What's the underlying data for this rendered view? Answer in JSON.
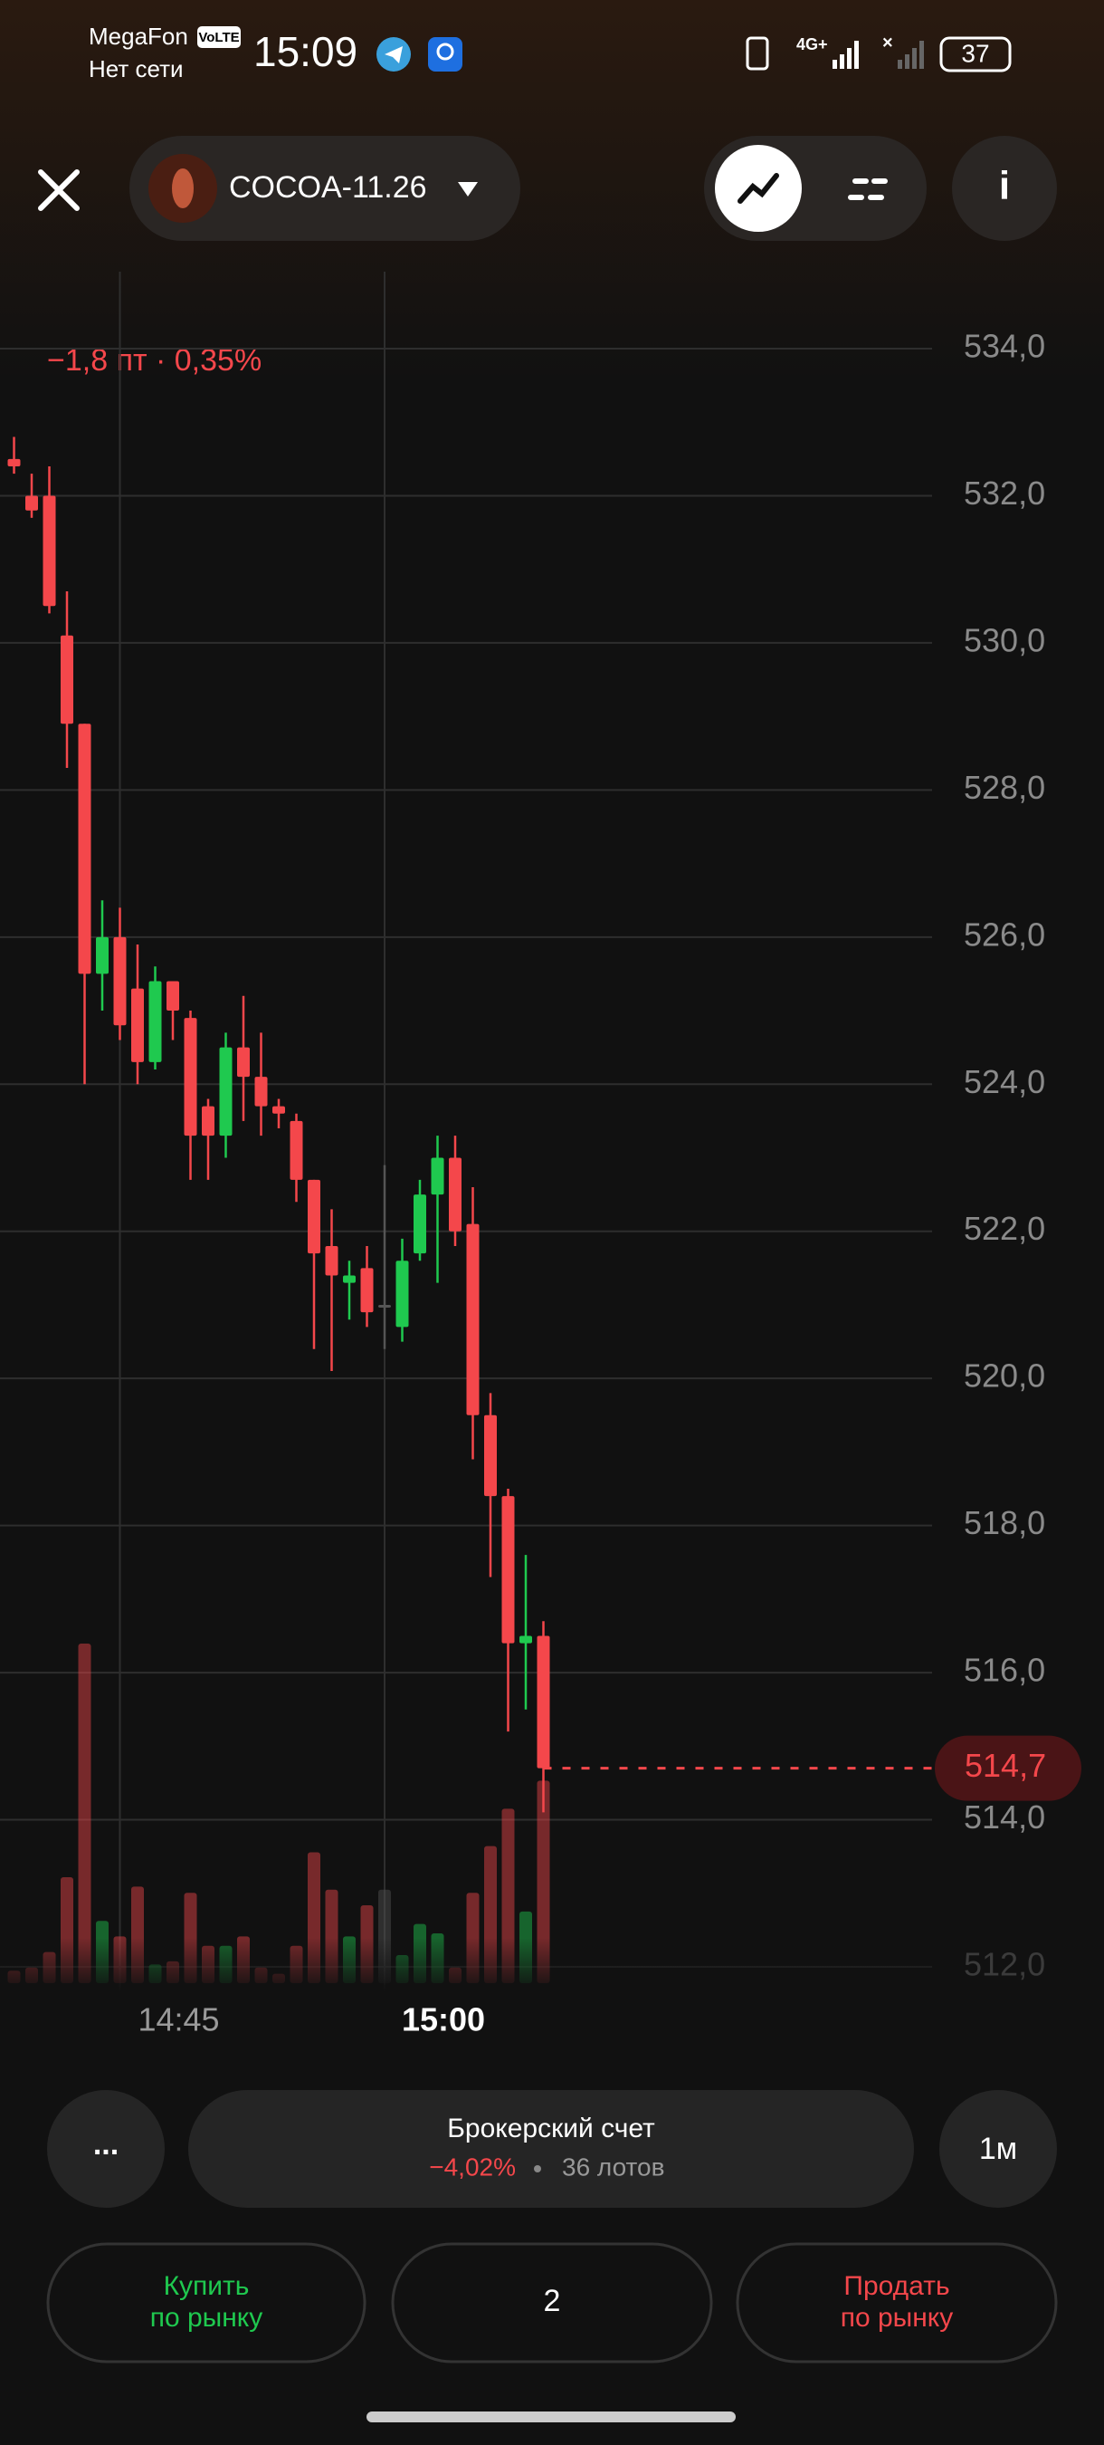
{
  "status_bar": {
    "carrier": "MegaFon",
    "volte": "VoLTE",
    "network": "Нет сети",
    "time": "15:09",
    "network_type": "4G+",
    "battery": "37"
  },
  "header": {
    "instrument": "COCOA-11.26"
  },
  "change": "−1,8 пт · 0,35%",
  "chart_data": {
    "type": "candlestick",
    "open": [
      532.5,
      532.0,
      532.0,
      530.1,
      528.9,
      525.5,
      526.0,
      525.3,
      524.3,
      525.4,
      524.9,
      523.7,
      523.3,
      524.5,
      524.1,
      523.7,
      523.5,
      522.7,
      521.8,
      521.3,
      521.5,
      521.0,
      520.7,
      521.7,
      522.5,
      523.0,
      522.1,
      519.5,
      518.4,
      516.4,
      516.5
    ],
    "high": [
      532.8,
      532.3,
      532.4,
      530.7,
      528.9,
      526.5,
      526.4,
      525.9,
      525.6,
      525.4,
      525.0,
      523.8,
      524.7,
      525.2,
      524.7,
      523.8,
      523.6,
      522.7,
      522.3,
      521.6,
      521.8,
      522.9,
      521.9,
      522.7,
      523.3,
      523.3,
      522.6,
      519.8,
      518.5,
      517.6,
      516.7
    ],
    "low": [
      532.3,
      531.7,
      530.4,
      528.3,
      524.0,
      525.0,
      524.6,
      524.0,
      524.2,
      524.6,
      522.7,
      522.7,
      523.0,
      523.5,
      523.3,
      523.4,
      522.4,
      520.4,
      520.1,
      520.8,
      520.7,
      520.4,
      520.5,
      521.6,
      521.3,
      521.8,
      518.9,
      517.3,
      515.2,
      515.5,
      514.1
    ],
    "close": [
      532.4,
      531.8,
      530.5,
      528.9,
      525.5,
      526.0,
      524.8,
      524.3,
      525.4,
      525.0,
      523.3,
      523.3,
      524.5,
      524.1,
      523.7,
      523.6,
      522.7,
      521.7,
      521.4,
      521.4,
      520.9,
      521.0,
      521.6,
      522.5,
      523.0,
      522.0,
      519.5,
      518.4,
      516.4,
      516.5,
      514.7
    ],
    "volume": [
      8,
      10,
      20,
      68,
      218,
      40,
      30,
      62,
      12,
      14,
      58,
      24,
      24,
      30,
      10,
      6,
      24,
      84,
      60,
      30,
      50,
      60,
      18,
      38,
      32,
      10,
      58,
      88,
      112,
      46,
      130
    ],
    "up_color": "#1fc94f",
    "down_color": "#f4474b",
    "flat_color": "#555555",
    "ylim": [
      512,
      534
    ],
    "yticks": [
      {
        "value": 534,
        "label": "534,0"
      },
      {
        "value": 532,
        "label": "532,0"
      },
      {
        "value": 530,
        "label": "530,0"
      },
      {
        "value": 528,
        "label": "528,0"
      },
      {
        "value": 526,
        "label": "526,0"
      },
      {
        "value": 524,
        "label": "524,0"
      },
      {
        "value": 522,
        "label": "522,0"
      },
      {
        "value": 520,
        "label": "520,0"
      },
      {
        "value": 518,
        "label": "518,0"
      },
      {
        "value": 516,
        "label": "516,0"
      },
      {
        "value": 514,
        "label": "514,0"
      },
      {
        "value": 512,
        "label": "512,0"
      }
    ],
    "xticks": [
      {
        "value": 6,
        "label": "14:45"
      },
      {
        "value": 21,
        "label": "15:00"
      }
    ],
    "grid": true,
    "last_price": {
      "value": 514.7,
      "label": "514,7"
    }
  },
  "account": {
    "title": "Брокерский счет",
    "change": "−4,02%",
    "lots": "36 лотов",
    "more": "...",
    "interval": "1м"
  },
  "order": {
    "buy": [
      "Купить",
      "по рынку"
    ],
    "quantity": 2,
    "sell": [
      "Продать",
      "по рынку"
    ]
  }
}
